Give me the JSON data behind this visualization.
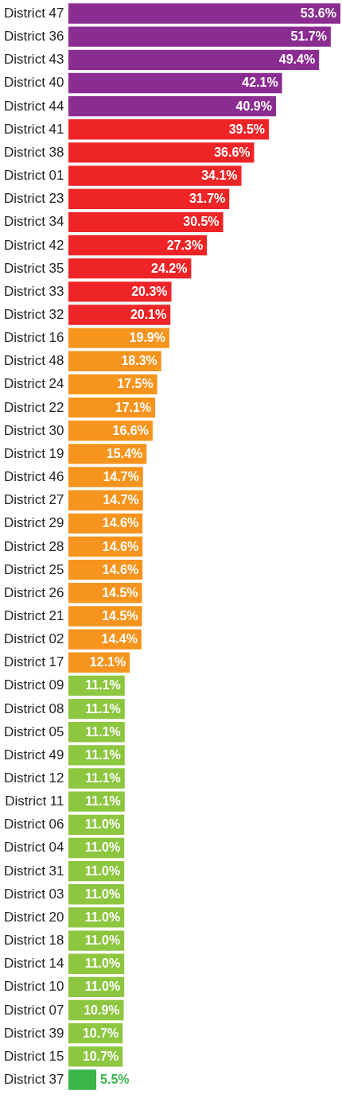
{
  "chart_data": {
    "type": "bar",
    "orientation": "horizontal",
    "categories": [
      "District 47",
      "District 36",
      "District 43",
      "District 40",
      "District 44",
      "District 41",
      "District 38",
      "District 01",
      "District 23",
      "District 34",
      "District 42",
      "District 35",
      "District 33",
      "District 32",
      "District 16",
      "District 48",
      "District 24",
      "District 22",
      "District 30",
      "District 19",
      "District 46",
      "District 27",
      "District 29",
      "District 28",
      "District 25",
      "District 26",
      "District 21",
      "District 02",
      "District 17",
      "District 09",
      "District 08",
      "District 05",
      "District 49",
      "District 12",
      "District 11",
      "District 06",
      "District 04",
      "District 31",
      "District 03",
      "District 20",
      "District 18",
      "District 14",
      "District 10",
      "District 07",
      "District 39",
      "District 15",
      "District 37"
    ],
    "values": [
      53.6,
      51.7,
      49.4,
      42.1,
      40.9,
      39.5,
      36.6,
      34.1,
      31.7,
      30.5,
      27.3,
      24.2,
      20.3,
      20.1,
      19.9,
      18.3,
      17.5,
      17.1,
      16.6,
      15.4,
      14.7,
      14.7,
      14.6,
      14.6,
      14.6,
      14.5,
      14.5,
      14.4,
      12.1,
      11.1,
      11.1,
      11.1,
      11.1,
      11.1,
      11.1,
      11.0,
      11.0,
      11.0,
      11.0,
      11.0,
      11.0,
      11.0,
      11.0,
      10.9,
      10.7,
      10.7,
      5.5
    ],
    "value_labels": [
      "53.6%",
      "51.7%",
      "49.4%",
      "42.1%",
      "40.9%",
      "39.5%",
      "36.6%",
      "34.1%",
      "31.7%",
      "30.5%",
      "27.3%",
      "24.2%",
      "20.3%",
      "20.1%",
      "19.9%",
      "18.3%",
      "17.5%",
      "17.1%",
      "16.6%",
      "15.4%",
      "14.7%",
      "14.7%",
      "14.6%",
      "14.6%",
      "14.6%",
      "14.5%",
      "14.5%",
      "14.4%",
      "12.1%",
      "11.1%",
      "11.1%",
      "11.1%",
      "11.1%",
      "11.1%",
      "11.1%",
      "11.0%",
      "11.0%",
      "11.0%",
      "11.0%",
      "11.0%",
      "11.0%",
      "11.0%",
      "11.0%",
      "10.9%",
      "10.7%",
      "10.7%",
      "5.5%"
    ],
    "colors": [
      "#8b2c91",
      "#8b2c91",
      "#8b2c91",
      "#8b2c91",
      "#8b2c91",
      "#ee2427",
      "#ee2427",
      "#ee2427",
      "#ee2427",
      "#ee2427",
      "#ee2427",
      "#ee2427",
      "#ee2427",
      "#ee2427",
      "#f7941d",
      "#f7941d",
      "#f7941d",
      "#f7941d",
      "#f7941d",
      "#f7941d",
      "#f7941d",
      "#f7941d",
      "#f7941d",
      "#f7941d",
      "#f7941d",
      "#f7941d",
      "#f7941d",
      "#f7941d",
      "#f7941d",
      "#8dc63f",
      "#8dc63f",
      "#8dc63f",
      "#8dc63f",
      "#8dc63f",
      "#8dc63f",
      "#8dc63f",
      "#8dc63f",
      "#8dc63f",
      "#8dc63f",
      "#8dc63f",
      "#8dc63f",
      "#8dc63f",
      "#8dc63f",
      "#8dc63f",
      "#8dc63f",
      "#8dc63f",
      "#39b54a"
    ],
    "grid": false
  }
}
